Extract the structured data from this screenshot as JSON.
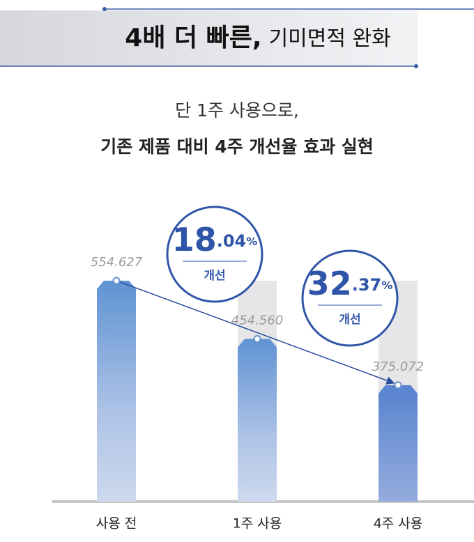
{
  "chart_data": {
    "type": "bar",
    "title_bold": "4배 더 빠른,",
    "title_rest": "기미면적 완화",
    "subtitle": [
      "단 1주 사용으로,",
      "기존 제품 대비 4주 개선율 효과 실현"
    ],
    "categories": [
      "사용 전",
      "1주 사용",
      "4주 사용"
    ],
    "values": [
      554.627,
      454.56,
      375.072
    ],
    "value_labels": [
      "554.627",
      "454.560",
      "375.072"
    ],
    "ylim": [
      175,
      600
    ],
    "badges": [
      {
        "integer": "18",
        "fraction": ".04",
        "unit": "%",
        "label": "개선"
      },
      {
        "integer": "32",
        "fraction": ".37",
        "unit": "%",
        "label": "개선"
      }
    ]
  }
}
